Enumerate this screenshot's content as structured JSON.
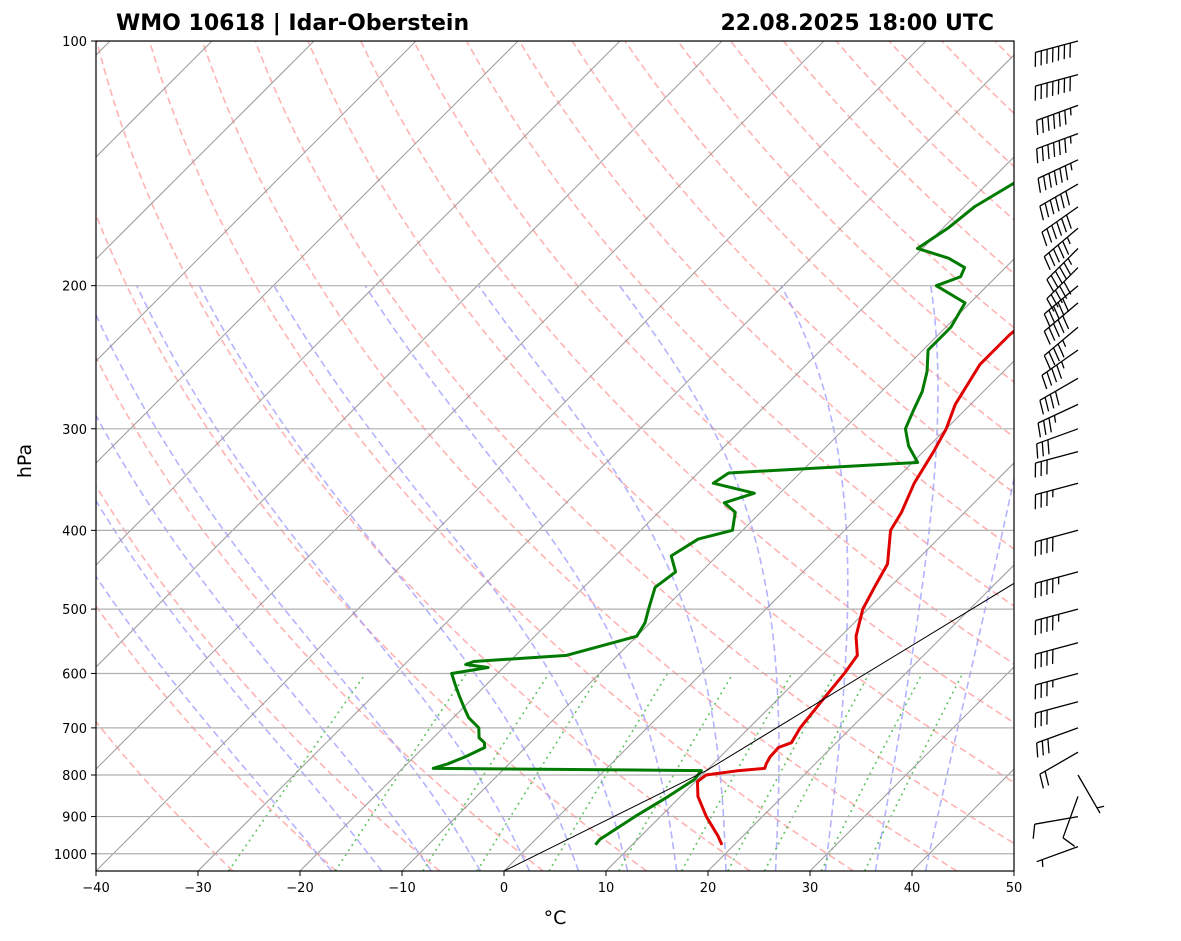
{
  "header": {
    "station": "WMO 10618 | Idar-Oberstein",
    "datetime": "22.08.2025 18:00 UTC"
  },
  "chart_data": {
    "type": "line",
    "subtype": "skew-T log-p sounding",
    "xlabel": "°C",
    "ylabel": "hPa",
    "xlim": [
      -40,
      50
    ],
    "ylim": [
      1050,
      100
    ],
    "y_scale": "log",
    "x_ticks": [
      -40,
      -30,
      -20,
      -10,
      0,
      10,
      20,
      30,
      40,
      50
    ],
    "x_tick_labels": [
      "−40",
      "−30",
      "−20",
      "−10",
      "0",
      "10",
      "20",
      "30",
      "40",
      "50"
    ],
    "y_ticks": [
      100,
      200,
      300,
      400,
      500,
      600,
      700,
      800,
      900,
      1000
    ],
    "y_tick_labels": [
      "100",
      "200",
      "300",
      "400",
      "500",
      "600",
      "700",
      "800",
      "900",
      "1000"
    ],
    "grid": true,
    "colors": {
      "temperature": "#e00000",
      "dewpoint": "#007a00",
      "dry_adiabats": "#ff9a9a",
      "moist_adiabats": "#9a9aff",
      "mixing_ratio": "#3cb43c",
      "isotherms": "#9a9a9a",
      "parcel": "#000000"
    },
    "series": [
      {
        "key": "temperature",
        "p": [
          975,
          950,
          900,
          850,
          815,
          800,
          790,
          785,
          775,
          760,
          740,
          730,
          700,
          650,
          600,
          570,
          540,
          500,
          470,
          440,
          400,
          380,
          350,
          320,
          300,
          280,
          250,
          230,
          215,
          210,
          200,
          190,
          180,
          170,
          160,
          150,
          140,
          130,
          120,
          110,
          100
        ],
        "t": [
          18.8,
          17.5,
          14.5,
          11.7,
          10.2,
          10.4,
          13.2,
          15.5,
          15.2,
          14.9,
          14.8,
          15.6,
          15.0,
          14.5,
          14.0,
          13.5,
          11.5,
          9.5,
          8.5,
          7.5,
          4.5,
          3.8,
          2.2,
          1.0,
          0.0,
          -1.5,
          -3.0,
          -3.0,
          -2.5,
          -1.3,
          1.0,
          2.0,
          5.0,
          8.5,
          11.5,
          13.0,
          15.0,
          18.0,
          21.0,
          23.5,
          27.3
        ]
      },
      {
        "key": "dewpoint",
        "p": [
          975,
          960,
          900,
          850,
          810,
          790,
          785,
          775,
          760,
          740,
          730,
          720,
          700,
          680,
          660,
          640,
          620,
          600,
          590,
          585,
          580,
          570,
          540,
          520,
          500,
          470,
          450,
          430,
          410,
          400,
          380,
          370,
          360,
          355,
          350,
          340,
          330,
          315,
          300,
          285,
          270,
          255,
          240,
          225,
          210,
          200,
          195,
          190,
          185,
          180,
          170,
          160,
          150,
          140,
          130,
          120,
          110,
          100
        ],
        "t": [
          6.4,
          6.3,
          7.5,
          8.8,
          9.7,
          9.5,
          -17.0,
          -16.0,
          -15.0,
          -14.0,
          -14.5,
          -15.5,
          -16.5,
          -18.5,
          -20.0,
          -21.5,
          -23.0,
          -24.5,
          -21.5,
          -24.0,
          -23.5,
          -15.0,
          -10.0,
          -10.5,
          -11.5,
          -13.0,
          -12.5,
          -14.5,
          -13.5,
          -11.0,
          -12.5,
          -14.5,
          -12.5,
          -15.0,
          -17.5,
          -17.0,
          0.5,
          -2.0,
          -4.0,
          -5.0,
          -6.0,
          -7.5,
          -9.5,
          -9.5,
          -10.5,
          -15.0,
          -13.5,
          -14.0,
          -16.5,
          -20.5,
          -19.5,
          -19.0,
          -17.5,
          -16.0,
          -13.5,
          -10.0,
          -7.0,
          -4.5
        ]
      },
      {
        "key": "parcel",
        "p": [
          1050,
          790,
          100
        ],
        "t": [
          0.0,
          10.0,
          56.0
        ]
      }
    ],
    "wind_barbs": {
      "units": "kt",
      "p": [
        980,
        900,
        850,
        800,
        750,
        700,
        650,
        600,
        550,
        500,
        450,
        400,
        350,
        320,
        300,
        280,
        260,
        240,
        225,
        210,
        200,
        190,
        180,
        170,
        160,
        150,
        140,
        130,
        120,
        110,
        100
      ],
      "speed": [
        5,
        10,
        10,
        5,
        20,
        30,
        30,
        35,
        40,
        45,
        45,
        40,
        35,
        30,
        30,
        35,
        40,
        45,
        45,
        50,
        50,
        50,
        55,
        55,
        60,
        60,
        65,
        65,
        65,
        70,
        70
      ],
      "dir": [
        250,
        260,
        200,
        150,
        240,
        250,
        255,
        255,
        255,
        255,
        255,
        255,
        255,
        255,
        250,
        245,
        240,
        235,
        230,
        230,
        230,
        225,
        225,
        230,
        235,
        240,
        245,
        250,
        250,
        255,
        255
      ]
    }
  }
}
